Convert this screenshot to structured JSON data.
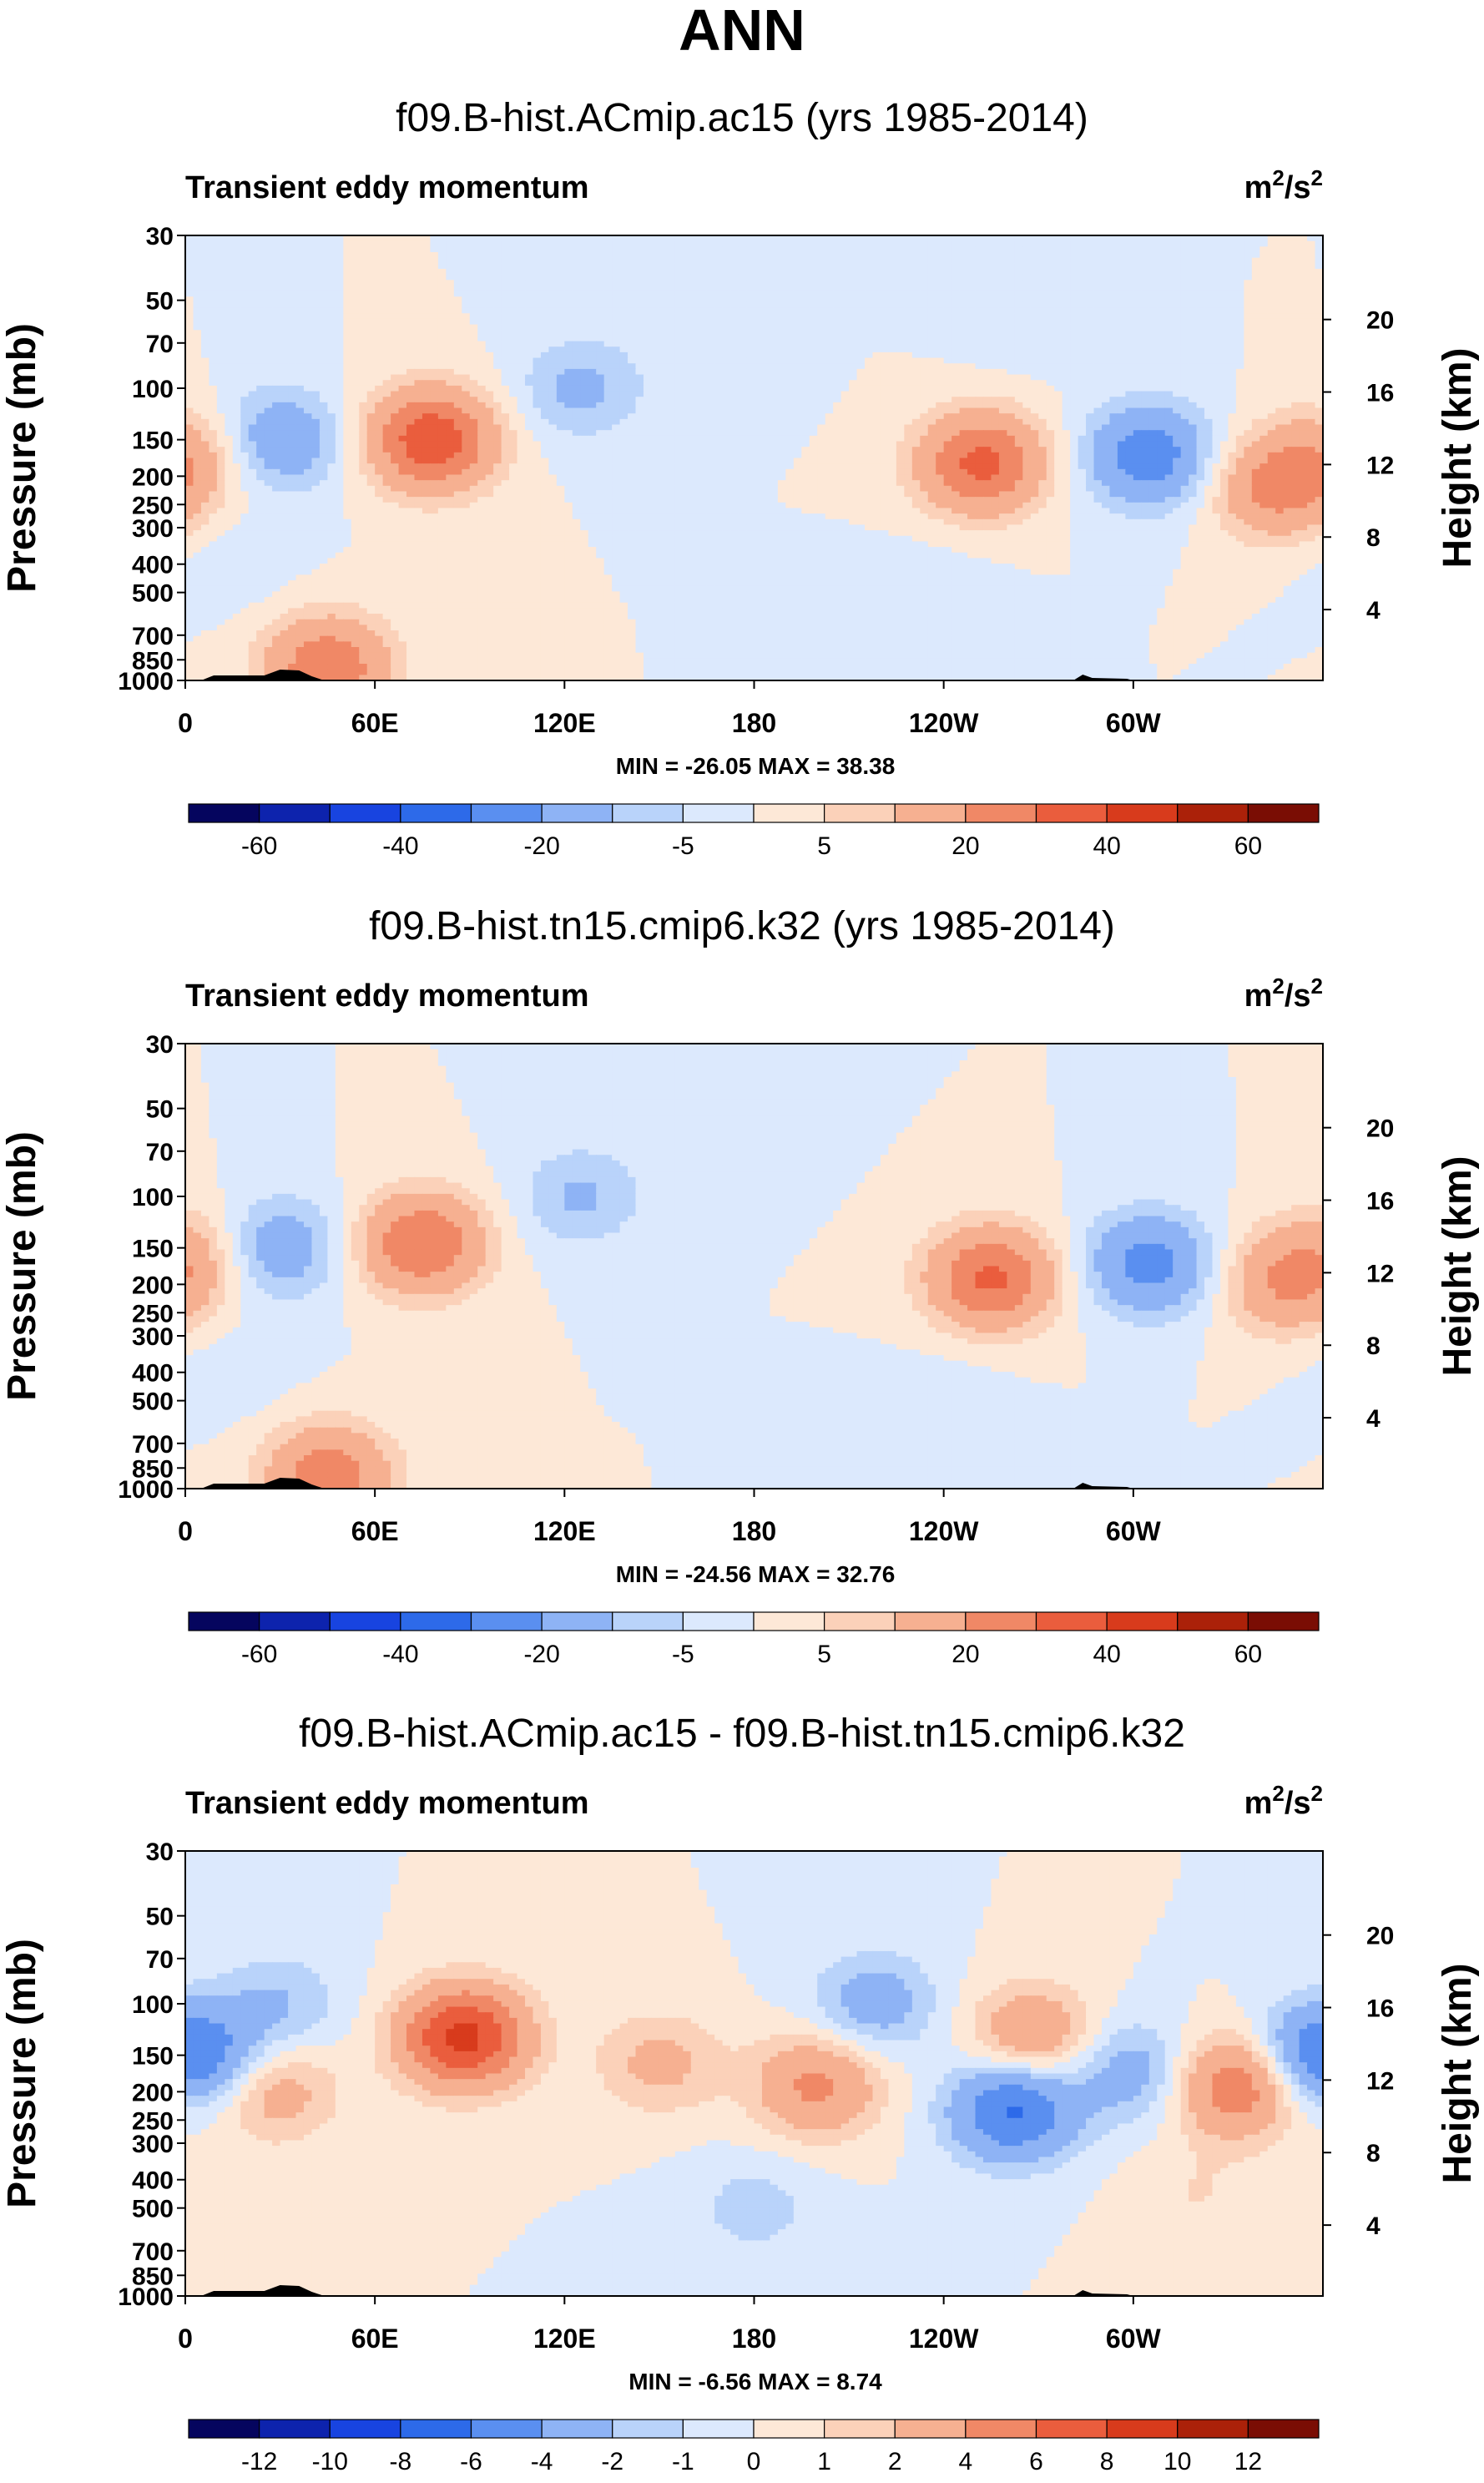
{
  "page_title": "ANN",
  "chart_data": [
    {
      "type": "heatmap",
      "title": "f09.B-hist.ACmip.ac15 (yrs 1985-2014)",
      "subtitle": "Transient eddy momentum",
      "units": "m²/s²",
      "units_base": "m",
      "units_exp1": "2",
      "units_mid": "/s",
      "units_exp2": "2",
      "ylabel": "Pressure (mb)",
      "y2label": "Height (km)",
      "x_ticks": [
        "0",
        "60E",
        "120E",
        "180",
        "120W",
        "60W"
      ],
      "x_values": [
        0,
        60,
        120,
        180,
        240,
        300
      ],
      "xlim": [
        0,
        360
      ],
      "y_ticks": [
        "30",
        "50",
        "70",
        "100",
        "150",
        "200",
        "250",
        "300",
        "400",
        "500",
        "700",
        "850",
        "1000"
      ],
      "y_values": [
        30,
        50,
        70,
        100,
        150,
        200,
        250,
        300,
        400,
        500,
        700,
        850,
        1000
      ],
      "ylim": [
        30,
        1000
      ],
      "height_ticks": [
        "20",
        "16",
        "12",
        "8",
        "4"
      ],
      "height_values": [
        20,
        16,
        12,
        8,
        4
      ],
      "stats": "MIN = -26.05  MAX = 38.38",
      "min": -26.05,
      "max": 38.38,
      "colorbar_labels": [
        "-60",
        "-40",
        "-20",
        "-5",
        "5",
        "20",
        "40",
        "60"
      ],
      "colorbar_levels": [
        -70,
        -60,
        -50,
        -40,
        -30,
        -20,
        -10,
        -5,
        0,
        5,
        10,
        20,
        30,
        40,
        50,
        60,
        70
      ],
      "features": [
        {
          "lon": 30,
          "p": 150,
          "value": -18
        },
        {
          "lon": 78,
          "p": 150,
          "value": 38
        },
        {
          "lon": 125,
          "p": 100,
          "value": -12
        },
        {
          "lon": 170,
          "p": 70,
          "value": -4
        },
        {
          "lon": 252,
          "p": 180,
          "value": 33
        },
        {
          "lon": 305,
          "p": 170,
          "value": -26
        },
        {
          "lon": 345,
          "p": 220,
          "value": 22
        },
        {
          "lon": 1,
          "p": 170,
          "value": 14
        },
        {
          "lon": 45,
          "p": 900,
          "value": 28
        },
        {
          "lon": 15,
          "p": 400,
          "value": -3
        },
        {
          "lon": 235,
          "p": 500,
          "value": -3
        },
        {
          "lon": 265,
          "p": 60,
          "value": -3
        }
      ]
    },
    {
      "type": "heatmap",
      "title": "f09.B-hist.tn15.cmip6.k32 (yrs 1985-2014)",
      "subtitle": "Transient eddy momentum",
      "units": "m²/s²",
      "units_base": "m",
      "units_exp1": "2",
      "units_mid": "/s",
      "units_exp2": "2",
      "ylabel": "Pressure (mb)",
      "y2label": "Height (km)",
      "x_ticks": [
        "0",
        "60E",
        "120E",
        "180",
        "120W",
        "60W"
      ],
      "x_values": [
        0,
        60,
        120,
        180,
        240,
        300
      ],
      "xlim": [
        0,
        360
      ],
      "y_ticks": [
        "30",
        "50",
        "70",
        "100",
        "150",
        "200",
        "250",
        "300",
        "400",
        "500",
        "700",
        "850",
        "1000"
      ],
      "y_values": [
        30,
        50,
        70,
        100,
        150,
        200,
        250,
        300,
        400,
        500,
        700,
        850,
        1000
      ],
      "ylim": [
        30,
        1000
      ],
      "height_ticks": [
        "20",
        "16",
        "12",
        "8",
        "4"
      ],
      "height_values": [
        20,
        16,
        12,
        8,
        4
      ],
      "stats": "MIN = -24.56  MAX = 32.76",
      "min": -24.56,
      "max": 32.76,
      "colorbar_labels": [
        "-60",
        "-40",
        "-20",
        "-5",
        "5",
        "20",
        "40",
        "60"
      ],
      "colorbar_levels": [
        -70,
        -60,
        -50,
        -40,
        -30,
        -20,
        -10,
        -5,
        0,
        5,
        10,
        20,
        30,
        40,
        50,
        60,
        70
      ],
      "features": [
        {
          "lon": 30,
          "p": 150,
          "value": -16
        },
        {
          "lon": 75,
          "p": 145,
          "value": 30
        },
        {
          "lon": 125,
          "p": 100,
          "value": -11
        },
        {
          "lon": 170,
          "p": 60,
          "value": -4
        },
        {
          "lon": 255,
          "p": 190,
          "value": 32
        },
        {
          "lon": 305,
          "p": 170,
          "value": -24
        },
        {
          "lon": 348,
          "p": 200,
          "value": 18
        },
        {
          "lon": 1,
          "p": 160,
          "value": 12
        },
        {
          "lon": 45,
          "p": 900,
          "value": 26
        },
        {
          "lon": 15,
          "p": 400,
          "value": -3
        },
        {
          "lon": 240,
          "p": 500,
          "value": -3
        }
      ]
    },
    {
      "type": "heatmap",
      "title": "f09.B-hist.ACmip.ac15 - f09.B-hist.tn15.cmip6.k32",
      "subtitle": "Transient eddy momentum",
      "units": "m²/s²",
      "units_base": "m",
      "units_exp1": "2",
      "units_mid": "/s",
      "units_exp2": "2",
      "ylabel": "Pressure (mb)",
      "y2label": "Height (km)",
      "x_ticks": [
        "0",
        "60E",
        "120E",
        "180",
        "120W",
        "60W"
      ],
      "x_values": [
        0,
        60,
        120,
        180,
        240,
        300
      ],
      "xlim": [
        0,
        360
      ],
      "y_ticks": [
        "30",
        "50",
        "70",
        "100",
        "150",
        "200",
        "250",
        "300",
        "400",
        "500",
        "700",
        "850",
        "1000"
      ],
      "y_values": [
        30,
        50,
        70,
        100,
        150,
        200,
        250,
        300,
        400,
        500,
        700,
        850,
        1000
      ],
      "ylim": [
        30,
        1000
      ],
      "height_ticks": [
        "20",
        "16",
        "12",
        "8",
        "4"
      ],
      "height_values": [
        20,
        16,
        12,
        8,
        4
      ],
      "stats": "MIN = -6.56  MAX = 8.74",
      "min": -6.56,
      "max": 8.74,
      "colorbar_labels": [
        "-12",
        "-10",
        "-8",
        "-6",
        "-4",
        "-2",
        "-1",
        "0",
        "1",
        "2",
        "4",
        "6",
        "8",
        "10",
        "12"
      ],
      "colorbar_levels": [
        -14,
        -12,
        -10,
        -8,
        -6,
        -4,
        -2,
        -1,
        0,
        1,
        2,
        4,
        6,
        8,
        10,
        12,
        14
      ],
      "features": [
        {
          "lon": 5,
          "p": 150,
          "value": -4
        },
        {
          "lon": 28,
          "p": 200,
          "value": 3
        },
        {
          "lon": 88,
          "p": 130,
          "value": 8.7
        },
        {
          "lon": 150,
          "p": 160,
          "value": 2.5
        },
        {
          "lon": 200,
          "p": 190,
          "value": 4.5
        },
        {
          "lon": 218,
          "p": 100,
          "value": -3
        },
        {
          "lon": 268,
          "p": 130,
          "value": 4
        },
        {
          "lon": 262,
          "p": 230,
          "value": -6.5
        },
        {
          "lon": 300,
          "p": 170,
          "value": -3
        },
        {
          "lon": 333,
          "p": 190,
          "value": 6
        },
        {
          "lon": 355,
          "p": 150,
          "value": -3
        },
        {
          "lon": 30,
          "p": 100,
          "value": -2
        },
        {
          "lon": 180,
          "p": 500,
          "value": -1.5
        },
        {
          "lon": 320,
          "p": 450,
          "value": 1
        }
      ]
    }
  ]
}
